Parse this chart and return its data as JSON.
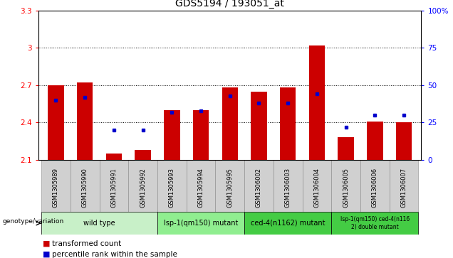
{
  "title": "GDS5194 / 193051_at",
  "samples": [
    "GSM1305989",
    "GSM1305990",
    "GSM1305991",
    "GSM1305992",
    "GSM1305993",
    "GSM1305994",
    "GSM1305995",
    "GSM1306002",
    "GSM1306003",
    "GSM1306004",
    "GSM1306005",
    "GSM1306006",
    "GSM1306007"
  ],
  "red_values": [
    2.7,
    2.72,
    2.15,
    2.18,
    2.5,
    2.5,
    2.68,
    2.65,
    2.68,
    3.02,
    2.28,
    2.41,
    2.4
  ],
  "blue_values": [
    40,
    42,
    20,
    20,
    32,
    33,
    43,
    38,
    38,
    44,
    22,
    30,
    30
  ],
  "ymin": 2.1,
  "ymax": 3.3,
  "yticks_red": [
    2.1,
    2.4,
    2.7,
    3.0,
    3.3
  ],
  "yticks_blue": [
    0,
    25,
    50,
    75,
    100
  ],
  "ytick_labels_red": [
    "2.1",
    "2.4",
    "2.7",
    "3",
    "3.3"
  ],
  "ytick_labels_blue": [
    "0",
    "25",
    "50",
    "75",
    "100%"
  ],
  "dotted_lines_red": [
    2.4,
    2.7,
    3.0
  ],
  "groups": [
    {
      "label": "wild type",
      "indices": [
        0,
        1,
        2,
        3
      ],
      "color": "#c8f0c8"
    },
    {
      "label": "lsp-1(qm150) mutant",
      "indices": [
        4,
        5,
        6
      ],
      "color": "#90ee90"
    },
    {
      "label": "ced-4(n1162) mutant",
      "indices": [
        7,
        8,
        9
      ],
      "color": "#44cc44"
    },
    {
      "label": "lsp-1(qm150) ced-4(n116\n2) double mutant",
      "indices": [
        10,
        11,
        12
      ],
      "color": "#44cc44"
    }
  ],
  "bar_color": "#cc0000",
  "blue_color": "#0000cc",
  "bar_width": 0.55,
  "legend_label_red": "transformed count",
  "legend_label_blue": "percentile rank within the sample",
  "genotype_label": "genotype/variation",
  "sample_bg": "#d0d0d0",
  "plot_bg": "#ffffff",
  "title_fontsize": 10,
  "tick_fontsize": 7.5,
  "sample_fontsize": 6,
  "group_fontsize": 7,
  "legend_fontsize": 7.5
}
